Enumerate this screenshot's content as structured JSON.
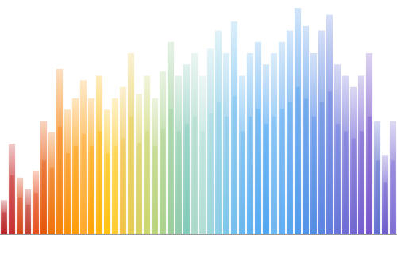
{
  "chart_data": {
    "type": "bar",
    "categories": [
      null,
      null,
      null,
      null,
      null,
      null,
      null,
      null,
      null,
      null,
      null,
      null,
      null,
      null,
      null,
      null,
      null,
      null,
      null,
      null,
      null,
      null,
      null,
      null,
      null,
      null,
      null,
      null,
      null,
      null,
      null,
      null,
      null,
      null,
      null,
      null,
      null,
      null,
      null,
      null,
      null,
      null,
      null,
      null,
      null,
      null,
      null,
      null,
      null,
      null
    ],
    "values": [
      15,
      40,
      25,
      20,
      28,
      50,
      45,
      73,
      55,
      60,
      68,
      60,
      70,
      55,
      60,
      65,
      80,
      62,
      70,
      60,
      72,
      85,
      70,
      75,
      80,
      70,
      82,
      90,
      80,
      94,
      70,
      80,
      85,
      75,
      80,
      85,
      90,
      100,
      92,
      80,
      90,
      97,
      75,
      70,
      65,
      70,
      80,
      50,
      35,
      50
    ],
    "colors": [
      "#b71c1c",
      "#c62828",
      "#d84315",
      "#c0392b",
      "#e64a19",
      "#e65100",
      "#ef6c00",
      "#f57c00",
      "#fb8c00",
      "#ff9800",
      "#ffa726",
      "#ffa000",
      "#ffb300",
      "#ffc107",
      "#ffca28",
      "#f0c040",
      "#e6c84a",
      "#d8cf5a",
      "#c8d46a",
      "#b8d27a",
      "#a8d08a",
      "#98cc98",
      "#8ccaa8",
      "#80c8b8",
      "#a8d8c8",
      "#b0dcd4",
      "#9ad4dc",
      "#88cce4",
      "#7cc4e8",
      "#70bcec",
      "#64b4ee",
      "#5aaef0",
      "#50a8f2",
      "#4aa2f0",
      "#6ab4f0",
      "#5eaaf0",
      "#54a0ee",
      "#4a98ec",
      "#4a90e8",
      "#5088e4",
      "#5680e0",
      "#5c78dc",
      "#6270d8",
      "#6868d4",
      "#6c60d0",
      "#7058cc",
      "#7450c8",
      "#5c6ccc",
      "#6858c8",
      "#7a6ad4"
    ],
    "ylim": [
      0,
      100
    ],
    "tick_labels": false,
    "grid": false
  }
}
